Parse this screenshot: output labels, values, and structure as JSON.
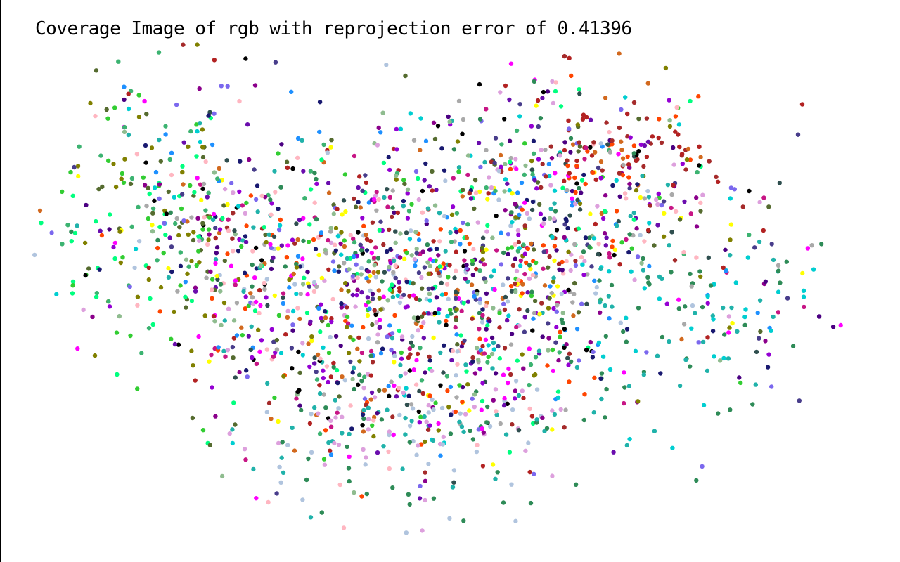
{
  "title": "Coverage Image of rgb with reprojection error of 0.41396",
  "image": {
    "background": "#ffffff",
    "left_border_color": "#000000",
    "marker": "cross-dot"
  },
  "palette": [
    "#00ff7f",
    "#ff00ff",
    "#9400d3",
    "#8b008b",
    "#6a0dad",
    "#1e90ff",
    "#556b2f",
    "#808000",
    "#a9a9a9",
    "#b0c4de",
    "#ffff00",
    "#20b2aa",
    "#2e8b57",
    "#4b0082",
    "#191970",
    "#a52a2a",
    "#d2691e",
    "#b22222",
    "#dda0dd",
    "#ffb6c1",
    "#3cb371",
    "#00ced1",
    "#7b68ee",
    "#32cd32",
    "#000000",
    "#c71585",
    "#8fbc8f",
    "#ff4500",
    "#483d8b",
    "#2f4f4f"
  ]
}
